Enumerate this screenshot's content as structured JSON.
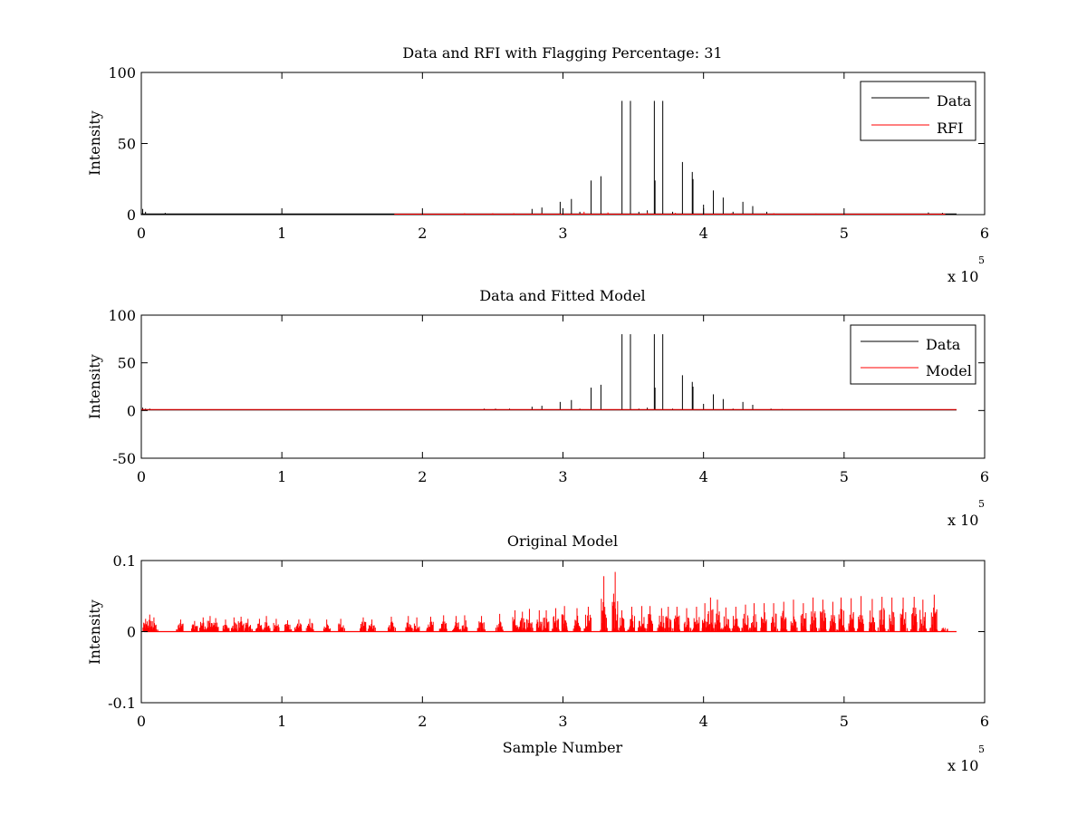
{
  "figure": {
    "background": "#ffffff"
  },
  "chart_data": [
    {
      "type": "line",
      "title": "Data and RFI with Flagging Percentage: 31",
      "xlabel": "",
      "ylabel": "Intensity",
      "xlim": [
        0,
        600000
      ],
      "ylim": [
        0,
        100
      ],
      "xticks": [
        0,
        100000,
        200000,
        300000,
        400000,
        500000,
        600000
      ],
      "xtick_labels": [
        "0",
        "1",
        "2",
        "3",
        "4",
        "5",
        "6"
      ],
      "yticks": [
        0,
        50,
        100
      ],
      "ytick_labels": [
        "0",
        "50",
        "100"
      ],
      "x_exponent_label": "x 10",
      "x_exponent_power": "5",
      "legend": "top-right",
      "grid": false,
      "series": [
        {
          "name": "Data",
          "color": "#000000",
          "baseline": 0.5,
          "x_end": 580000,
          "spikes": [
            [
              1000,
              4
            ],
            [
              3000,
              2
            ],
            [
              17000,
              1.2
            ],
            [
              278000,
              4
            ],
            [
              285000,
              5
            ],
            [
              298000,
              9
            ],
            [
              306000,
              11
            ],
            [
              312000,
              2
            ],
            [
              320000,
              24
            ],
            [
              327000,
              27
            ],
            [
              342000,
              80
            ],
            [
              348000,
              80
            ],
            [
              354000,
              2
            ],
            [
              360000,
              3
            ],
            [
              365000,
              80
            ],
            [
              365500,
              24
            ],
            [
              371000,
              80
            ],
            [
              378000,
              2
            ],
            [
              385000,
              37
            ],
            [
              392000,
              30
            ],
            [
              392500,
              25
            ],
            [
              400000,
              7
            ],
            [
              407000,
              17
            ],
            [
              414000,
              12
            ],
            [
              421000,
              2
            ],
            [
              428000,
              9
            ],
            [
              435000,
              6
            ],
            [
              445000,
              2
            ],
            [
              560000,
              1.5
            ],
            [
              570000,
              1.2
            ]
          ]
        },
        {
          "name": "RFI",
          "color": "#ff0000",
          "x_start": 180000,
          "x_end": 572000,
          "baseline": 0.3,
          "spikes": [
            [
              230000,
              1
            ],
            [
              250000,
              1
            ],
            [
              265000,
              1
            ],
            [
              285000,
              1
            ],
            [
              300000,
              1.5
            ],
            [
              315000,
              2
            ],
            [
              332000,
              1.5
            ],
            [
              360000,
              1.5
            ],
            [
              380000,
              1.2
            ],
            [
              420000,
              1
            ],
            [
              450000,
              1
            ],
            [
              480000,
              0.8
            ]
          ]
        }
      ]
    },
    {
      "type": "line",
      "title": "Data and Fitted Model",
      "xlabel": "",
      "ylabel": "Intensity",
      "xlim": [
        0,
        600000
      ],
      "ylim": [
        -50,
        100
      ],
      "xticks": [
        0,
        100000,
        200000,
        300000,
        400000,
        500000,
        600000
      ],
      "xtick_labels": [
        "0",
        "1",
        "2",
        "3",
        "4",
        "5",
        "6"
      ],
      "yticks": [
        -50,
        0,
        50,
        100
      ],
      "ytick_labels": [
        "-50",
        "0",
        "50",
        "100"
      ],
      "x_exponent_label": "x 10",
      "x_exponent_power": "5",
      "legend": "top-right",
      "grid": false,
      "series": [
        {
          "name": "Data",
          "color": "#000000",
          "baseline": 0.5,
          "x_end": 580000,
          "spikes": [
            [
              1000,
              3
            ],
            [
              3000,
              2
            ],
            [
              6000,
              2
            ],
            [
              244000,
              2
            ],
            [
              252000,
              2
            ],
            [
              262000,
              2
            ],
            [
              278000,
              4
            ],
            [
              285000,
              5
            ],
            [
              298000,
              9
            ],
            [
              306000,
              11
            ],
            [
              312000,
              2
            ],
            [
              320000,
              24
            ],
            [
              327000,
              27
            ],
            [
              342000,
              80
            ],
            [
              348000,
              80
            ],
            [
              354000,
              2
            ],
            [
              360000,
              3
            ],
            [
              365000,
              80
            ],
            [
              365500,
              24
            ],
            [
              371000,
              80
            ],
            [
              378000,
              2
            ],
            [
              385000,
              37
            ],
            [
              392000,
              30
            ],
            [
              392500,
              25
            ],
            [
              400000,
              7
            ],
            [
              407000,
              17
            ],
            [
              414000,
              12
            ],
            [
              421000,
              2
            ],
            [
              428000,
              9
            ],
            [
              435000,
              6
            ],
            [
              448000,
              2
            ],
            [
              456000,
              1.5
            ]
          ]
        },
        {
          "name": "Model",
          "color": "#ff0000",
          "baseline": 1,
          "x_start": 0,
          "x_end": 580000,
          "spikes": []
        }
      ]
    },
    {
      "type": "line",
      "title": "Original Model",
      "xlabel": "Sample Number",
      "ylabel": "Intensity",
      "xlim": [
        0,
        600000
      ],
      "ylim": [
        -0.1,
        0.1
      ],
      "xticks": [
        0,
        100000,
        200000,
        300000,
        400000,
        500000,
        600000
      ],
      "xtick_labels": [
        "0",
        "1",
        "2",
        "3",
        "4",
        "5",
        "6"
      ],
      "yticks": [
        -0.1,
        0,
        0.1
      ],
      "ytick_labels": [
        "-0.1",
        "0",
        "0.1"
      ],
      "x_exponent_label": "x 10",
      "x_exponent_power": "5",
      "grid": false,
      "series": [
        {
          "name": "",
          "color": "#ff0000",
          "baseline": 0,
          "x_start": 2000,
          "x_end": 580000,
          "bursts": [
            [
              3000,
              0.018
            ],
            [
              6000,
              0.024
            ],
            [
              9000,
              0.02
            ],
            [
              28000,
              0.017
            ],
            [
              38000,
              0.015
            ],
            [
              44000,
              0.02
            ],
            [
              49000,
              0.022
            ],
            [
              53000,
              0.019
            ],
            [
              60000,
              0.017
            ],
            [
              66000,
              0.02
            ],
            [
              71000,
              0.021
            ],
            [
              76000,
              0.018
            ],
            [
              84000,
              0.018
            ],
            [
              89000,
              0.022
            ],
            [
              96000,
              0.018
            ],
            [
              104000,
              0.016
            ],
            [
              112000,
              0.017
            ],
            [
              120000,
              0.018
            ],
            [
              132000,
              0.017
            ],
            [
              142000,
              0.018
            ],
            [
              158000,
              0.02
            ],
            [
              164000,
              0.017
            ],
            [
              178000,
              0.021
            ],
            [
              190000,
              0.022
            ],
            [
              196000,
              0.02
            ],
            [
              206000,
              0.021
            ],
            [
              215000,
              0.023
            ],
            [
              224000,
              0.022
            ],
            [
              230000,
              0.023
            ],
            [
              242000,
              0.022
            ],
            [
              255000,
              0.025
            ],
            [
              266000,
              0.03
            ],
            [
              271000,
              0.028
            ],
            [
              276000,
              0.032
            ],
            [
              283000,
              0.03
            ],
            [
              288000,
              0.03
            ],
            [
              295000,
              0.033
            ],
            [
              301000,
              0.036
            ],
            [
              310000,
              0.033
            ],
            [
              318000,
              0.035
            ],
            [
              329000,
              0.078
            ],
            [
              337000,
              0.084
            ],
            [
              342000,
              0.03
            ],
            [
              349000,
              0.035
            ],
            [
              356000,
              0.036
            ],
            [
              362000,
              0.036
            ],
            [
              370000,
              0.033
            ],
            [
              375000,
              0.035
            ],
            [
              381000,
              0.035
            ],
            [
              388000,
              0.033
            ],
            [
              395000,
              0.035
            ],
            [
              401000,
              0.04
            ],
            [
              405000,
              0.048
            ],
            [
              410000,
              0.045
            ],
            [
              416000,
              0.034
            ],
            [
              423000,
              0.035
            ],
            [
              430000,
              0.038
            ],
            [
              436000,
              0.04
            ],
            [
              443000,
              0.04
            ],
            [
              450000,
              0.04
            ],
            [
              457000,
              0.042
            ],
            [
              464000,
              0.045
            ],
            [
              471000,
              0.04
            ],
            [
              478000,
              0.048
            ],
            [
              485000,
              0.045
            ],
            [
              492000,
              0.042
            ],
            [
              498000,
              0.048
            ],
            [
              505000,
              0.047
            ],
            [
              512000,
              0.05
            ],
            [
              520000,
              0.046
            ],
            [
              527000,
              0.049
            ],
            [
              534000,
              0.048
            ],
            [
              542000,
              0.048
            ],
            [
              550000,
              0.049
            ],
            [
              556000,
              0.045
            ],
            [
              564000,
              0.052
            ],
            [
              571000,
              0.003
            ]
          ]
        }
      ]
    }
  ]
}
